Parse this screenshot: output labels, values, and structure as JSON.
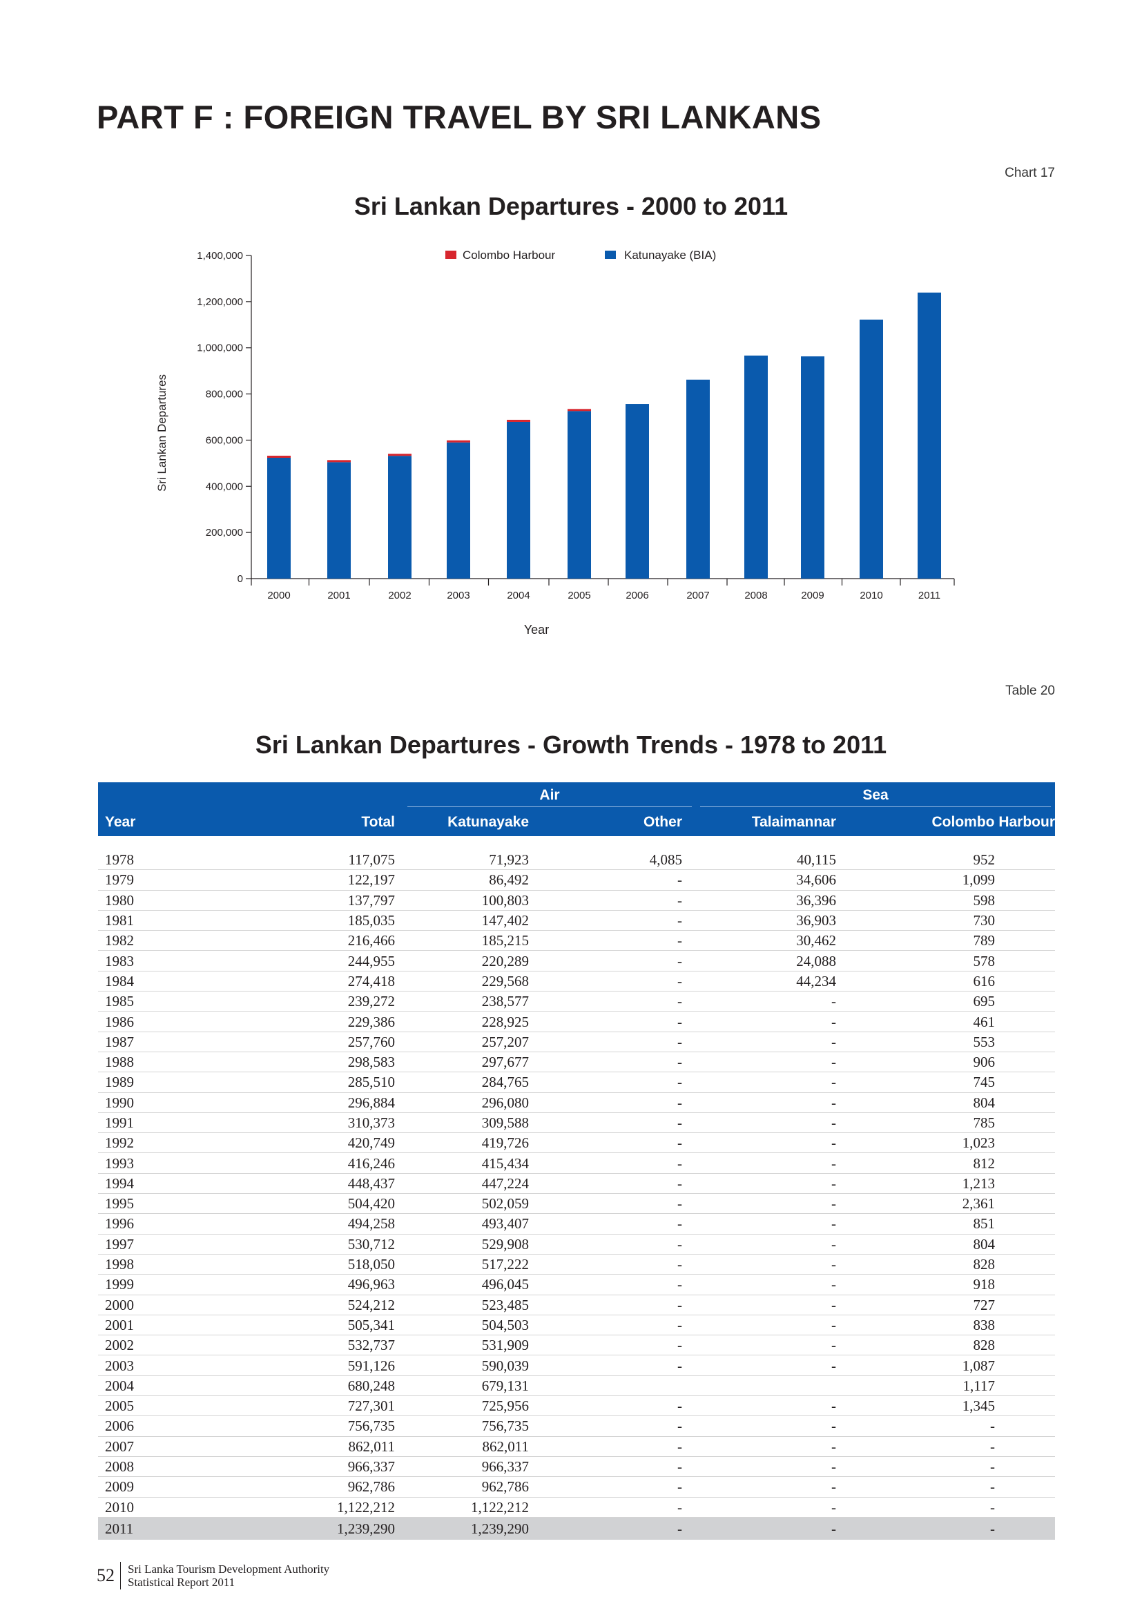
{
  "header": {
    "part_title": "PART F : FOREIGN TRAVEL BY SRI LANKANS",
    "chart_ref": "Chart 17",
    "table_ref": "Table 20"
  },
  "chart_data": {
    "type": "bar",
    "stacked": true,
    "title": "Sri Lankan Departures  -  2000 to 2011",
    "xlabel": "Year",
    "ylabel": "Sri Lankan Departures",
    "ylim": [
      0,
      1400000
    ],
    "yticks": [
      "0",
      "200,000",
      "400,000",
      "600,000",
      "800,000",
      "1,000,000",
      "1,200,000",
      "1,400,000"
    ],
    "categories": [
      "2000",
      "2001",
      "2002",
      "2003",
      "2004",
      "2005",
      "2006",
      "2007",
      "2008",
      "2009",
      "2010",
      "2011"
    ],
    "legend_position": "top",
    "series": [
      {
        "name": "Katunayake (BIA)",
        "color": "#0a5aad",
        "values": [
          523485,
          504503,
          531909,
          590039,
          679131,
          725956,
          756735,
          862011,
          966337,
          962786,
          1122212,
          1239290
        ]
      },
      {
        "name": "Colombo  Harbour",
        "color": "#d7262e",
        "values": [
          727,
          838,
          828,
          1087,
          1117,
          1345,
          0,
          0,
          0,
          0,
          0,
          0
        ]
      }
    ]
  },
  "table": {
    "title": "Sri Lankan Departures - Growth Trends - 1978 to 2011",
    "group_air": "Air",
    "group_sea": "Sea",
    "columns": [
      "Year",
      "Total",
      "Katunayake",
      "Other",
      "Talaimannar",
      "Colombo Harbour"
    ],
    "rows": [
      [
        "1978",
        "117,075",
        "71,923",
        "4,085",
        "40,115",
        "952"
      ],
      [
        "1979",
        "122,197",
        "86,492",
        "-",
        "34,606",
        "1,099"
      ],
      [
        "1980",
        "137,797",
        "100,803",
        "-",
        "36,396",
        "598"
      ],
      [
        "1981",
        "185,035",
        "147,402",
        "-",
        "36,903",
        "730"
      ],
      [
        "1982",
        "216,466",
        "185,215",
        "-",
        "30,462",
        "789"
      ],
      [
        "1983",
        "244,955",
        "220,289",
        "-",
        "24,088",
        "578"
      ],
      [
        "1984",
        "274,418",
        "229,568",
        "-",
        "44,234",
        "616"
      ],
      [
        "1985",
        "239,272",
        "238,577",
        "-",
        "-",
        "695"
      ],
      [
        "1986",
        "229,386",
        "228,925",
        "-",
        "-",
        "461"
      ],
      [
        "1987",
        "257,760",
        "257,207",
        "-",
        "-",
        "553"
      ],
      [
        "1988",
        "298,583",
        "297,677",
        "-",
        "-",
        "906"
      ],
      [
        "1989",
        "285,510",
        "284,765",
        "-",
        "-",
        "745"
      ],
      [
        "1990",
        "296,884",
        "296,080",
        "-",
        "-",
        "804"
      ],
      [
        "1991",
        "310,373",
        "309,588",
        "-",
        "-",
        "785"
      ],
      [
        "1992",
        "420,749",
        "419,726",
        "-",
        "-",
        "1,023"
      ],
      [
        "1993",
        "416,246",
        "415,434",
        "-",
        "-",
        "812"
      ],
      [
        "1994",
        "448,437",
        "447,224",
        "-",
        "-",
        "1,213"
      ],
      [
        "1995",
        "504,420",
        "502,059",
        "-",
        "-",
        "2,361"
      ],
      [
        "1996",
        "494,258",
        "493,407",
        "-",
        "-",
        "851"
      ],
      [
        "1997",
        "530,712",
        "529,908",
        "-",
        "-",
        "804"
      ],
      [
        "1998",
        "518,050",
        "517,222",
        "-",
        "-",
        "828"
      ],
      [
        "1999",
        "496,963",
        "496,045",
        "-",
        "-",
        "918"
      ],
      [
        "2000",
        "524,212",
        "523,485",
        "-",
        "-",
        "727"
      ],
      [
        "2001",
        "505,341",
        "504,503",
        "-",
        "-",
        "838"
      ],
      [
        "2002",
        "532,737",
        "531,909",
        "-",
        "-",
        "828"
      ],
      [
        "2003",
        "591,126",
        "590,039",
        "-",
        "-",
        "1,087"
      ],
      [
        "2004",
        "680,248",
        "679,131",
        "",
        "",
        "1,117"
      ],
      [
        "2005",
        "727,301",
        "725,956",
        "-",
        "-",
        "1,345"
      ],
      [
        "2006",
        "756,735",
        "756,735",
        "-",
        "-",
        "-"
      ],
      [
        "2007",
        "862,011",
        "862,011",
        "-",
        "-",
        "-"
      ],
      [
        "2008",
        "966,337",
        "966,337",
        "-",
        "-",
        "-"
      ],
      [
        "2009",
        "962,786",
        "962,786",
        "-",
        "-",
        "-"
      ],
      [
        "2010",
        "1,122,212",
        "1,122,212",
        "-",
        "-",
        "-"
      ],
      [
        "2011",
        "1,239,290",
        "1,239,290",
        "-",
        "-",
        "-"
      ]
    ]
  },
  "footer": {
    "page_number": "52",
    "org_line1": "Sri Lanka Tourism Development Authority",
    "org_line2": "Statistical Report 2011"
  }
}
